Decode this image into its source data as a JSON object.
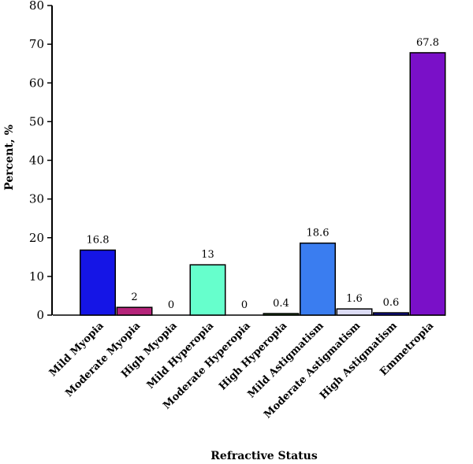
{
  "chart_data": {
    "type": "bar",
    "title": "",
    "xlabel": "Refractive Status",
    "ylabel": "Percent, %",
    "ylim": [
      0,
      80
    ],
    "yticks": [
      0,
      10,
      20,
      30,
      40,
      50,
      60,
      70,
      80
    ],
    "grid": false,
    "categories": [
      "Mild Myopia",
      "Moderate Myopia",
      "High Myopia",
      "Mild Hyperopia",
      "Moderate Hyperopia",
      "High Hyperopia",
      "Mild Astigmatism",
      "Moderate Astigmatism",
      "High Astigmatism",
      "Emmetropia"
    ],
    "values": [
      16.8,
      2,
      0,
      13,
      0,
      0.4,
      18.6,
      1.6,
      0.6,
      67.8
    ],
    "data_labels": [
      "16.8",
      "2",
      "0",
      "13",
      "0",
      "0.4",
      "18.6",
      "1.6",
      "0.6",
      "67.8"
    ],
    "colors": [
      "#1515e6",
      "#b5247a",
      "#cccccc",
      "#66ffcc",
      "#cccccc",
      "#3a7a2a",
      "#3a7df0",
      "#dcdcf5",
      "#1010a0",
      "#7a10c8"
    ]
  }
}
